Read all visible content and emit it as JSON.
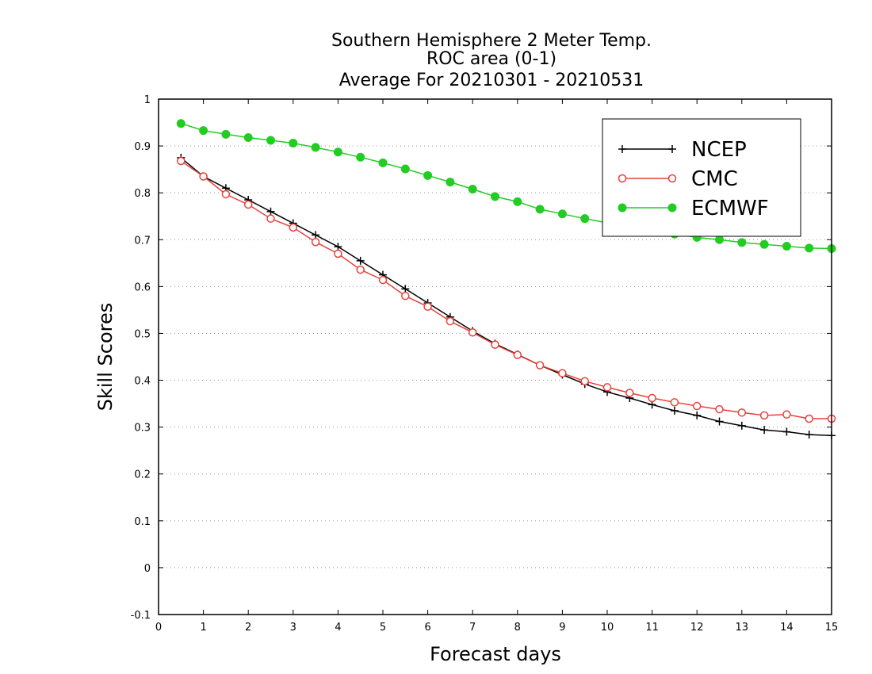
{
  "chart_data": {
    "type": "line",
    "title_lines": [
      "Southern Hemisphere 2 Meter Temp.",
      "ROC area (0-1)",
      "Average For 20210301 - 20210531"
    ],
    "xlabel": "Forecast days",
    "ylabel": "Skill Scores",
    "xlim": [
      0,
      15
    ],
    "ylim": [
      -0.1,
      1
    ],
    "x_ticks": [
      0,
      1,
      2,
      3,
      4,
      5,
      6,
      7,
      8,
      9,
      10,
      11,
      12,
      13,
      14,
      15
    ],
    "y_ticks": [
      -0.1,
      0,
      0.1,
      0.2,
      0.3,
      0.4,
      0.5,
      0.6,
      0.7,
      0.8,
      0.9,
      1
    ],
    "y_tick_labels": [
      "-0.1",
      "0",
      "0.1",
      "0.2",
      "0.3",
      "0.4",
      "0.5",
      "0.6",
      "0.7",
      "0.8",
      "0.9",
      "1"
    ],
    "grid": "horizontal dotted",
    "legend_position": "top-right",
    "x": [
      0.5,
      1,
      1.5,
      2,
      2.5,
      3,
      3.5,
      4,
      4.5,
      5,
      5.5,
      6,
      6.5,
      7,
      7.5,
      8,
      8.5,
      9,
      9.5,
      10,
      10.5,
      11,
      11.5,
      12,
      12.5,
      13,
      13.5,
      14,
      14.5,
      15
    ],
    "series": [
      {
        "name": "NCEP",
        "color": "#000000",
        "marker": "plus",
        "values": [
          0.875,
          0.835,
          0.81,
          0.785,
          0.76,
          0.735,
          0.71,
          0.685,
          0.655,
          0.625,
          0.595,
          0.565,
          0.535,
          0.505,
          0.478,
          0.455,
          0.432,
          0.412,
          0.392,
          0.375,
          0.362,
          0.348,
          0.335,
          0.325,
          0.312,
          0.303,
          0.294,
          0.29,
          0.284,
          0.282
        ]
      },
      {
        "name": "CMC",
        "color": "#e8403a",
        "marker": "open-circle",
        "values": [
          0.868,
          0.835,
          0.797,
          0.775,
          0.745,
          0.726,
          0.695,
          0.67,
          0.636,
          0.614,
          0.58,
          0.557,
          0.526,
          0.502,
          0.476,
          0.454,
          0.432,
          0.415,
          0.398,
          0.385,
          0.373,
          0.362,
          0.353,
          0.345,
          0.338,
          0.331,
          0.325,
          0.327,
          0.318,
          0.318
        ]
      },
      {
        "name": "ECMWF",
        "color": "#22cc22",
        "marker": "filled-circle",
        "values": [
          0.948,
          0.933,
          0.925,
          0.918,
          0.912,
          0.906,
          0.897,
          0.887,
          0.876,
          0.864,
          0.851,
          0.837,
          0.823,
          0.808,
          0.792,
          0.781,
          0.765,
          0.755,
          0.745,
          0.736,
          0.728,
          0.72,
          0.712,
          0.705,
          0.7,
          0.694,
          0.69,
          0.686,
          0.682,
          0.681
        ]
      }
    ]
  }
}
